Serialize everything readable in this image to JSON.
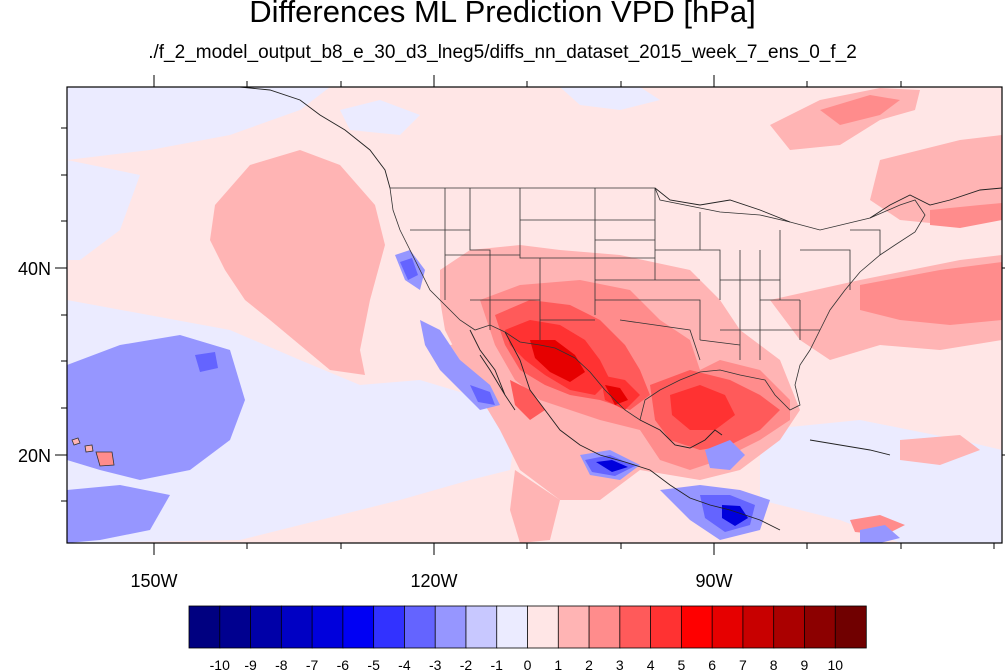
{
  "title": "Differences ML Prediction VPD [hPa]",
  "subtitle": "./f_2_model_output_b8_e_30_d3_lneg5/diffs_nn_dataset_2015_week_7_ens_0_f_2",
  "axes": {
    "lon_labels": [
      "150W",
      "120W",
      "90W"
    ],
    "lat_labels": [
      "40N",
      "20N"
    ]
  },
  "colorbar": {
    "labels": [
      "-10",
      "-9",
      "-8",
      "-7",
      "-6",
      "-5",
      "-4",
      "-3",
      "-2",
      "-1",
      "0",
      "1",
      "2",
      "3",
      "4",
      "5",
      "6",
      "7",
      "8",
      "9",
      "10"
    ],
    "colors": [
      "#000080",
      "#00008f",
      "#0000a8",
      "#0000c4",
      "#0000dc",
      "#0000f4",
      "#3232ff",
      "#6464ff",
      "#9696ff",
      "#c8c8ff",
      "#ebebff",
      "#ffe6e6",
      "#ffb4b4",
      "#ff8c8c",
      "#ff5a5a",
      "#ff3232",
      "#ff0000",
      "#e60000",
      "#c80000",
      "#aa0000",
      "#8c0000",
      "#700000"
    ]
  }
}
